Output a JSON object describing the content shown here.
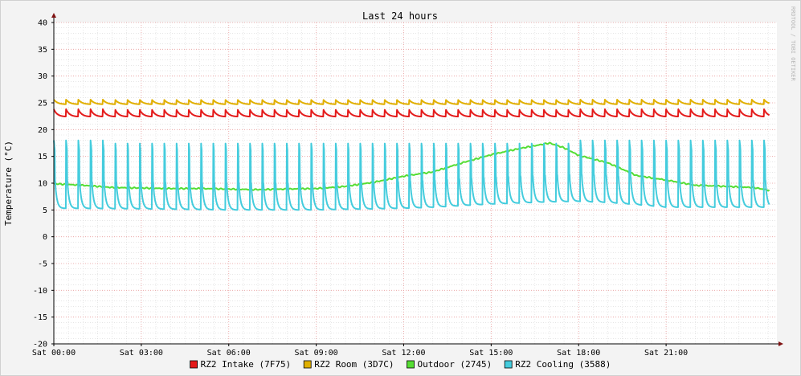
{
  "colors": {
    "background": "#f3f3f3",
    "canvas": "#ffffff",
    "grid_major": "#e89a9a",
    "grid_minor": "#d8d8d8",
    "axis": "#7f1212"
  },
  "chart_data": {
    "type": "line",
    "title": "Last 24 hours",
    "xlabel": "",
    "ylabel": "Temperature (°C)",
    "watermark": "RRDTOOL / TOBI OETIKER",
    "ylim": [
      -20,
      40
    ],
    "yticks": [
      -20,
      -15,
      -10,
      -5,
      0,
      5,
      10,
      15,
      20,
      25,
      30,
      35,
      40
    ],
    "xlim_hours": [
      0,
      24.8
    ],
    "xticks": [
      {
        "hour": 0,
        "label": "Sat 00:00"
      },
      {
        "hour": 3,
        "label": "Sat 03:00"
      },
      {
        "hour": 6,
        "label": "Sat 06:00"
      },
      {
        "hour": 9,
        "label": "Sat 09:00"
      },
      {
        "hour": 12,
        "label": "Sat 12:00"
      },
      {
        "hour": 15,
        "label": "Sat 15:00"
      },
      {
        "hour": 18,
        "label": "Sat 18:00"
      },
      {
        "hour": 21,
        "label": "Sat 21:00"
      }
    ],
    "grid": true,
    "legend_position": "bottom",
    "series": [
      {
        "name": "RZ2 Intake (7F75)",
        "color": "#e41a1a",
        "cycle": {
          "period_hours": 0.42,
          "base": 22.4,
          "peak": 23.8,
          "decay": 0.8
        }
      },
      {
        "name": "RZ2 Room (3D7C)",
        "color": "#e0b000",
        "cycle": {
          "period_hours": 0.42,
          "base": 24.7,
          "peak": 25.6,
          "decay": 0.9
        }
      },
      {
        "name": "Outdoor (2745)",
        "color": "#55dd33",
        "hours": [
          0,
          1,
          2,
          3,
          4,
          5,
          6,
          7,
          8,
          9,
          10,
          11,
          12,
          13,
          14,
          15,
          16,
          17,
          17.5,
          18,
          19,
          20,
          21,
          22,
          23,
          24,
          24.5
        ],
        "values": [
          9.9,
          9.6,
          9.2,
          9.1,
          9.0,
          9.0,
          8.9,
          8.8,
          8.9,
          9.0,
          9.4,
          10.2,
          11.3,
          12.1,
          13.8,
          15.3,
          16.5,
          17.5,
          16.6,
          15.2,
          13.8,
          11.4,
          10.6,
          9.6,
          9.4,
          9.2,
          8.7
        ]
      },
      {
        "name": "RZ2 Cooling (3588)",
        "color": "#44ccdd",
        "cycle": {
          "period_hours": 0.42,
          "low": 5.0,
          "high": 18.0
        },
        "low_hours": [
          0,
          3,
          6,
          9,
          12,
          13,
          14,
          15,
          16,
          17,
          18,
          19,
          20,
          21,
          24.5
        ],
        "low_values": [
          5.3,
          5.2,
          5.0,
          5.0,
          5.3,
          5.5,
          5.8,
          6.1,
          6.3,
          6.5,
          6.6,
          6.4,
          6.0,
          5.5,
          5.5
        ]
      }
    ]
  }
}
